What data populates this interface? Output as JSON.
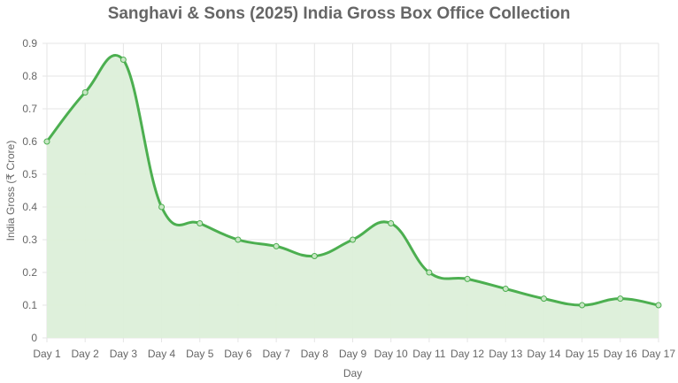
{
  "chart_data": {
    "type": "area",
    "title": "Sanghavi & Sons (2025) India Gross Box Office Collection",
    "xlabel": "Day",
    "ylabel": "India Gross (₹ Crore)",
    "categories": [
      "Day 1",
      "Day 2",
      "Day 3",
      "Day 4",
      "Day 5",
      "Day 6",
      "Day 7",
      "Day 8",
      "Day 9",
      "Day 10",
      "Day 11",
      "Day 12",
      "Day 13",
      "Day 14",
      "Day 15",
      "Day 16",
      "Day 17"
    ],
    "series": [
      {
        "values": [
          0.6,
          0.75,
          0.85,
          0.4,
          0.35,
          0.3,
          0.28,
          0.25,
          0.3,
          0.35,
          0.2,
          0.18,
          0.15,
          0.12,
          0.1,
          0.12,
          0.1
        ]
      }
    ],
    "ylim": [
      0,
      0.9
    ],
    "yticks": [
      "0",
      "0.1",
      "0.2",
      "0.3",
      "0.4",
      "0.5",
      "0.6",
      "0.7",
      "0.8",
      "0.9"
    ],
    "grid": true,
    "line_color": "#4caf50",
    "fill_color": "#dcefd9",
    "grid_color": "#e5e5e5"
  }
}
